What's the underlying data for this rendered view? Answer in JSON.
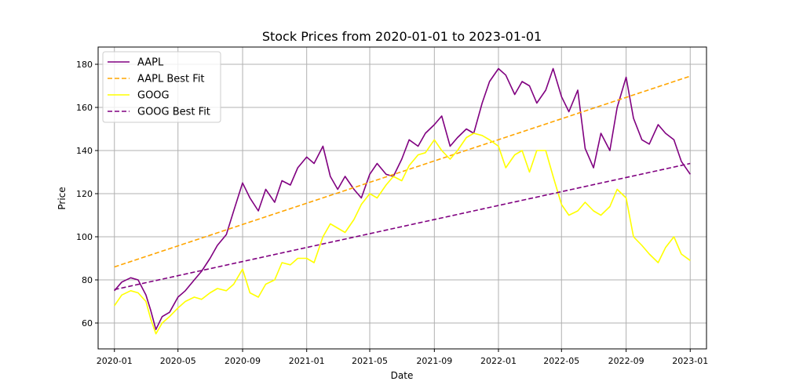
{
  "chart_data": {
    "type": "line",
    "title": "Stock Prices from 2020-01-01 to 2023-01-01",
    "xlabel": "Date",
    "ylabel": "Price",
    "xlim": [
      "2019-12-01",
      "2023-02-01"
    ],
    "ylim": [
      48,
      188
    ],
    "x_ticks": [
      "2020-01",
      "2020-05",
      "2020-09",
      "2021-01",
      "2021-05",
      "2021-09",
      "2022-01",
      "2022-05",
      "2022-09",
      "2023-01"
    ],
    "y_ticks": [
      60,
      80,
      100,
      120,
      140,
      160,
      180
    ],
    "grid": true,
    "legend_position": "top-left",
    "series": [
      {
        "name": "AAPL",
        "style": "solid",
        "color": "#800080",
        "x": [
          "2020-01-01",
          "2020-01-15",
          "2020-02-01",
          "2020-02-15",
          "2020-03-01",
          "2020-03-10",
          "2020-03-20",
          "2020-04-01",
          "2020-04-15",
          "2020-05-01",
          "2020-05-15",
          "2020-06-01",
          "2020-06-15",
          "2020-07-01",
          "2020-07-15",
          "2020-08-01",
          "2020-08-15",
          "2020-09-01",
          "2020-09-15",
          "2020-10-01",
          "2020-10-15",
          "2020-11-01",
          "2020-11-15",
          "2020-12-01",
          "2020-12-15",
          "2021-01-01",
          "2021-01-15",
          "2021-02-01",
          "2021-02-15",
          "2021-03-01",
          "2021-03-15",
          "2021-04-01",
          "2021-04-15",
          "2021-05-01",
          "2021-05-15",
          "2021-06-01",
          "2021-06-15",
          "2021-07-01",
          "2021-07-15",
          "2021-08-01",
          "2021-08-15",
          "2021-09-01",
          "2021-09-15",
          "2021-10-01",
          "2021-10-15",
          "2021-11-01",
          "2021-11-15",
          "2021-12-01",
          "2021-12-15",
          "2022-01-01",
          "2022-01-15",
          "2022-02-01",
          "2022-02-15",
          "2022-03-01",
          "2022-03-15",
          "2022-04-01",
          "2022-04-15",
          "2022-05-01",
          "2022-05-15",
          "2022-06-01",
          "2022-06-15",
          "2022-07-01",
          "2022-07-15",
          "2022-08-01",
          "2022-08-15",
          "2022-09-01",
          "2022-09-15",
          "2022-10-01",
          "2022-10-15",
          "2022-11-01",
          "2022-11-15",
          "2022-12-01",
          "2022-12-15",
          "2023-01-01"
        ],
        "values": [
          75,
          79,
          81,
          80,
          73,
          66,
          57,
          63,
          65,
          72,
          75,
          80,
          84,
          90,
          96,
          101,
          112,
          125,
          118,
          112,
          122,
          116,
          126,
          124,
          132,
          137,
          134,
          142,
          128,
          122,
          128,
          122,
          118,
          129,
          134,
          129,
          128,
          136,
          145,
          142,
          148,
          152,
          156,
          142,
          146,
          150,
          148,
          162,
          172,
          178,
          175,
          166,
          172,
          170,
          162,
          168,
          178,
          165,
          158,
          168,
          141,
          132,
          148,
          140,
          160,
          174,
          155,
          145,
          143,
          152,
          148,
          145,
          135,
          129
        ]
      },
      {
        "name": "AAPL Best Fit",
        "style": "dashed",
        "color": "#ffa500",
        "x": [
          "2020-01-01",
          "2023-01-01"
        ],
        "values": [
          86,
          174.5
        ]
      },
      {
        "name": "GOOG",
        "style": "solid",
        "color": "#ffff00",
        "x": [
          "2020-01-01",
          "2020-01-15",
          "2020-02-01",
          "2020-02-15",
          "2020-03-01",
          "2020-03-10",
          "2020-03-20",
          "2020-04-01",
          "2020-04-15",
          "2020-05-01",
          "2020-05-15",
          "2020-06-01",
          "2020-06-15",
          "2020-07-01",
          "2020-07-15",
          "2020-08-01",
          "2020-08-15",
          "2020-09-01",
          "2020-09-15",
          "2020-10-01",
          "2020-10-15",
          "2020-11-01",
          "2020-11-15",
          "2020-12-01",
          "2020-12-15",
          "2021-01-01",
          "2021-01-15",
          "2021-02-01",
          "2021-02-15",
          "2021-03-01",
          "2021-03-15",
          "2021-04-01",
          "2021-04-15",
          "2021-05-01",
          "2021-05-15",
          "2021-06-01",
          "2021-06-15",
          "2021-07-01",
          "2021-07-15",
          "2021-08-01",
          "2021-08-15",
          "2021-09-01",
          "2021-09-15",
          "2021-10-01",
          "2021-10-15",
          "2021-11-01",
          "2021-11-15",
          "2021-12-01",
          "2021-12-15",
          "2022-01-01",
          "2022-01-15",
          "2022-02-01",
          "2022-02-15",
          "2022-03-01",
          "2022-03-15",
          "2022-04-01",
          "2022-04-15",
          "2022-05-01",
          "2022-05-15",
          "2022-06-01",
          "2022-06-15",
          "2022-07-01",
          "2022-07-15",
          "2022-08-01",
          "2022-08-15",
          "2022-09-01",
          "2022-09-15",
          "2022-10-01",
          "2022-10-15",
          "2022-11-01",
          "2022-11-15",
          "2022-12-01",
          "2022-12-15",
          "2023-01-01"
        ],
        "values": [
          68,
          73,
          75,
          74,
          70,
          62,
          55,
          60,
          63,
          67,
          70,
          72,
          71,
          74,
          76,
          75,
          78,
          85,
          74,
          72,
          78,
          80,
          88,
          87,
          90,
          90,
          88,
          100,
          106,
          104,
          102,
          108,
          115,
          120,
          118,
          124,
          128,
          126,
          133,
          138,
          139,
          145,
          140,
          136,
          140,
          146,
          148,
          147,
          145,
          142,
          132,
          138,
          140,
          130,
          140,
          140,
          128,
          115,
          110,
          112,
          116,
          112,
          110,
          114,
          122,
          118,
          100,
          96,
          92,
          88,
          95,
          100,
          92,
          89
        ]
      },
      {
        "name": "GOOG Best Fit",
        "style": "dashed",
        "color": "#800080",
        "x": [
          "2020-01-01",
          "2023-01-01"
        ],
        "values": [
          75.5,
          134
        ]
      }
    ]
  }
}
